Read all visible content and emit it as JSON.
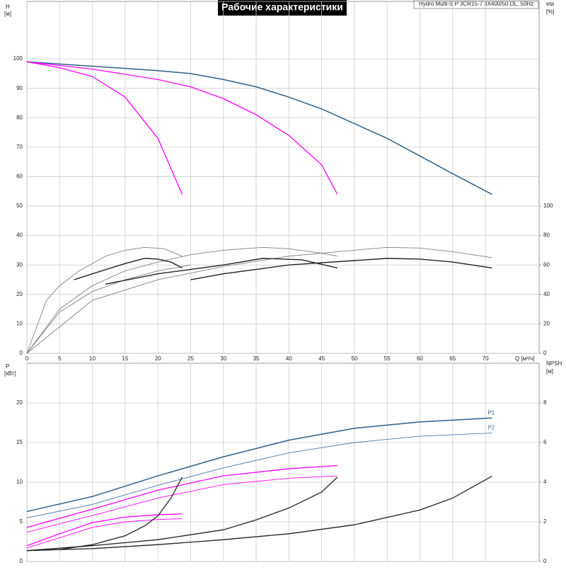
{
  "chart_data": [
    {
      "type": "line",
      "title": "Рабочие характеристики",
      "subtitle": "Hydro Multi-S P 3CR15-7 3X400/50 DL, 50Hz",
      "y_label": "H",
      "y_unit": "[м]",
      "y2_label": "eta",
      "y2_unit": "[%]",
      "x_label": "Q [м³/ч]",
      "xlim": [
        0,
        78.2
      ],
      "xticks": [
        0,
        5,
        10,
        15,
        20,
        25,
        30,
        35,
        40,
        45,
        50,
        55,
        60,
        65,
        70
      ],
      "ylim": [
        0,
        119.5
      ],
      "yticks": [
        0,
        10,
        20,
        30,
        40,
        50,
        60,
        70,
        80,
        90,
        100
      ],
      "y2lim": [
        0,
        239
      ],
      "y2ticks": [
        0,
        20,
        40,
        60,
        80,
        100
      ],
      "grid": true,
      "show_xtick_labels": true,
      "series": [
        {
          "color": "#2f5f8a",
          "width": 1.5,
          "x": [
            0,
            10,
            20,
            25,
            30,
            35,
            40,
            45,
            50,
            55,
            60,
            65,
            71
          ],
          "values": [
            99,
            97.5,
            96,
            95,
            93,
            90.5,
            87,
            83,
            78,
            73,
            67,
            61,
            54
          ]
        },
        {
          "color": "#ff00ff",
          "width": 1.3,
          "x": [
            0,
            10,
            20,
            25,
            30,
            35,
            40,
            45,
            47.4
          ],
          "values": [
            99,
            96.5,
            93,
            90.5,
            86.5,
            81,
            74,
            64,
            54
          ]
        },
        {
          "color": "#ff00ff",
          "width": 1.3,
          "x": [
            0,
            5,
            10,
            15,
            20,
            23.7
          ],
          "values": [
            99,
            97,
            94,
            87,
            73,
            54
          ]
        },
        {
          "color": "#808080",
          "width": 0.9,
          "axis": "y2",
          "x": [
            0,
            10,
            20,
            30,
            40,
            50,
            55,
            60,
            65,
            71
          ],
          "values": [
            0,
            36,
            50,
            59,
            66,
            70,
            72,
            71.5,
            69,
            65
          ]
        },
        {
          "color": "#808080",
          "width": 0.9,
          "axis": "y2",
          "x": [
            0,
            5,
            10,
            15,
            20,
            25,
            30,
            36,
            40,
            45,
            47.4
          ],
          "values": [
            0,
            30,
            46,
            56,
            62,
            67,
            70,
            72,
            71,
            68,
            66
          ]
        },
        {
          "color": "#808080",
          "width": 0.9,
          "axis": "y2",
          "x": [
            0,
            3,
            5,
            8,
            12,
            15,
            18,
            21,
            23.7
          ],
          "values": [
            0,
            36,
            46,
            56,
            66,
            70,
            72,
            71,
            66
          ]
        },
        {
          "color": "#808080",
          "width": 0.9,
          "axis": "y2",
          "x": [
            0,
            5,
            10,
            15,
            20,
            25
          ],
          "values": [
            0,
            28,
            42,
            50,
            56,
            60
          ]
        },
        {
          "color": "#222222",
          "width": 1.4,
          "axis": "y2",
          "x": [
            25,
            30,
            40,
            50,
            55,
            60,
            65,
            71
          ],
          "values": [
            50,
            54,
            60,
            63,
            64.5,
            64,
            62,
            58
          ]
        },
        {
          "color": "#222222",
          "width": 1.4,
          "axis": "y2",
          "x": [
            12,
            20,
            30,
            36,
            42,
            47.4
          ],
          "values": [
            47,
            54,
            60,
            64.5,
            63.5,
            58
          ]
        },
        {
          "color": "#222222",
          "width": 1.4,
          "axis": "y2",
          "x": [
            7.2,
            10,
            15,
            18,
            20,
            22,
            23.7
          ],
          "values": [
            50,
            54,
            61,
            64.5,
            64,
            62,
            58
          ]
        }
      ]
    },
    {
      "type": "line",
      "y_label": "P",
      "y_unit": "[кВт]",
      "y2_label": "NPSH",
      "y2_unit": "[м]",
      "xlim": [
        0,
        78.2
      ],
      "xticks": [
        0,
        5,
        10,
        15,
        20,
        25,
        30,
        35,
        40,
        45,
        50,
        55,
        60,
        65,
        70
      ],
      "ylim": [
        0,
        25
      ],
      "yticks": [
        0,
        5,
        10,
        15,
        20
      ],
      "y2lim": [
        0,
        10
      ],
      "y2ticks": [
        0,
        2,
        4,
        6,
        8
      ],
      "grid": true,
      "show_xtick_labels": false,
      "series": [
        {
          "name": "P1",
          "color": "#2f5f8a",
          "width": 1.5,
          "x": [
            0,
            10,
            20,
            30,
            40,
            50,
            60,
            71
          ],
          "values": [
            6.3,
            8.2,
            10.8,
            13.2,
            15.3,
            16.8,
            17.6,
            18.1
          ]
        },
        {
          "name": "P2",
          "color": "#4a7aa8",
          "width": 0.9,
          "x": [
            0,
            10,
            20,
            30,
            40,
            50,
            60,
            71
          ],
          "values": [
            5.5,
            7.2,
            9.6,
            11.8,
            13.7,
            15,
            15.8,
            16.2
          ]
        },
        {
          "color": "#ff00ff",
          "width": 1.3,
          "x": [
            0,
            10,
            20,
            30,
            40,
            47.4
          ],
          "values": [
            4.3,
            6.6,
            9,
            10.8,
            11.7,
            12.1
          ]
        },
        {
          "color": "#ff00ff",
          "width": 0.9,
          "x": [
            0,
            10,
            20,
            30,
            40,
            47.4
          ],
          "values": [
            3.7,
            5.8,
            8,
            9.7,
            10.5,
            10.8
          ]
        },
        {
          "color": "#ff00ff",
          "width": 1.3,
          "x": [
            0,
            5,
            10,
            15,
            20,
            23.7
          ],
          "values": [
            2,
            3.5,
            4.9,
            5.6,
            5.9,
            6
          ]
        },
        {
          "color": "#ff00ff",
          "width": 0.9,
          "x": [
            0,
            5,
            10,
            15,
            20,
            23.7
          ],
          "values": [
            1.7,
            3,
            4.3,
            5,
            5.3,
            5.4
          ]
        },
        {
          "color": "#222222",
          "width": 1.3,
          "axis": "y2",
          "x": [
            0,
            10,
            20,
            30,
            40,
            50,
            60,
            65,
            71
          ],
          "values": [
            0.55,
            0.65,
            0.85,
            1.1,
            1.4,
            1.85,
            2.6,
            3.2,
            4.3
          ]
        },
        {
          "color": "#222222",
          "width": 1.3,
          "axis": "y2",
          "x": [
            0,
            10,
            20,
            30,
            35,
            40,
            45,
            47.4
          ],
          "values": [
            0.55,
            0.8,
            1.1,
            1.6,
            2.1,
            2.7,
            3.5,
            4.25
          ]
        },
        {
          "color": "#222222",
          "width": 1.3,
          "axis": "y2",
          "x": [
            0,
            5,
            10,
            15,
            18,
            20,
            22,
            23.7
          ],
          "values": [
            0.55,
            0.6,
            0.85,
            1.3,
            1.8,
            2.3,
            3.2,
            4.25
          ]
        }
      ]
    }
  ]
}
